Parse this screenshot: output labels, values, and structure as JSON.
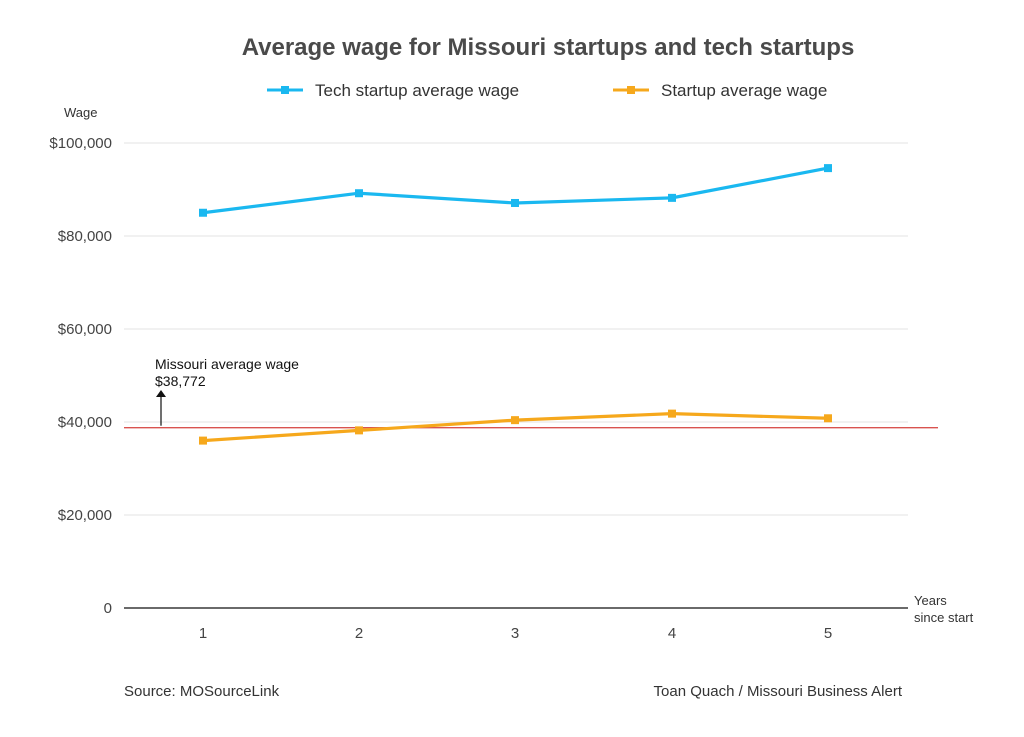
{
  "chart_data": {
    "type": "line",
    "title": "Average wage for Missouri startups and tech startups",
    "ylabel": "Wage",
    "xlabel": "Years since start",
    "x": [
      1,
      2,
      3,
      4,
      5
    ],
    "ylim": [
      0,
      100000
    ],
    "yticks": [
      0,
      20000,
      40000,
      60000,
      80000,
      100000
    ],
    "ytick_labels": [
      "0",
      "$20,000",
      "$40,000",
      "$60,000",
      "$80,000",
      "$100,000"
    ],
    "grid": true,
    "legend_position": "top",
    "series": [
      {
        "name": "Tech startup average wage",
        "color": "#1ab8f0",
        "values": [
          85000,
          89200,
          87100,
          88200,
          94600
        ]
      },
      {
        "name": "Startup average wage",
        "color": "#f6a81c",
        "values": [
          36000,
          38200,
          40400,
          41800,
          40800
        ]
      }
    ],
    "reference_line": {
      "value": 38772,
      "color": "#d9534f",
      "label": "Missouri average wage",
      "value_label": "$38,772"
    }
  },
  "footer": {
    "source": "Source: MOSourceLink",
    "credit": "Toan Quach / Missouri Business Alert"
  }
}
